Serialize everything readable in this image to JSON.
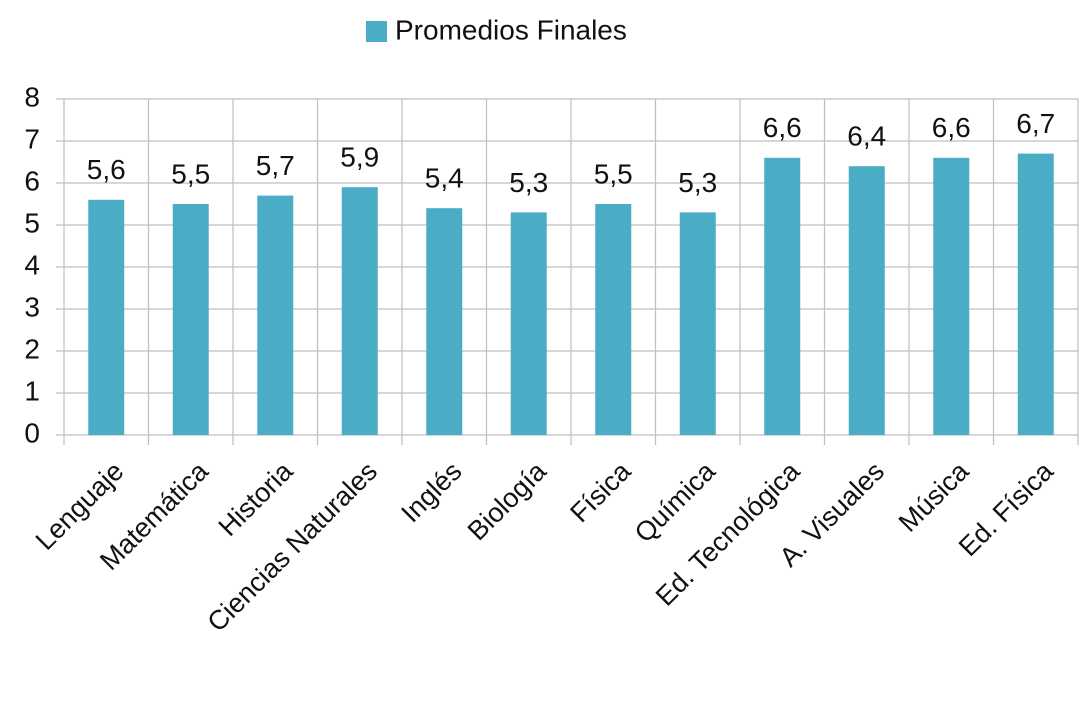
{
  "chart_data": {
    "type": "bar",
    "categories": [
      "Lenguaje",
      "Matemática",
      "Historia",
      "Ciencias Naturales",
      "Inglés",
      "Biología",
      "Física",
      "Química",
      "Ed. Tecnológica",
      "A. Visuales",
      "Música",
      "Ed. Física"
    ],
    "series": [
      {
        "name": "Promedios Finales",
        "color": "#4bacc6",
        "values": [
          5.6,
          5.5,
          5.7,
          5.9,
          5.4,
          5.3,
          5.5,
          5.3,
          6.6,
          6.4,
          6.6,
          6.7
        ],
        "value_labels": [
          "5,6",
          "5,5",
          "5,7",
          "5,9",
          "5,4",
          "5,3",
          "5,5",
          "5,3",
          "6,6",
          "6,4",
          "6,6",
          "6,7"
        ]
      }
    ],
    "ylim": [
      0,
      8
    ],
    "yticks": [
      0,
      1,
      2,
      3,
      4,
      5,
      6,
      7,
      8
    ],
    "grid": true,
    "legend": "top"
  }
}
